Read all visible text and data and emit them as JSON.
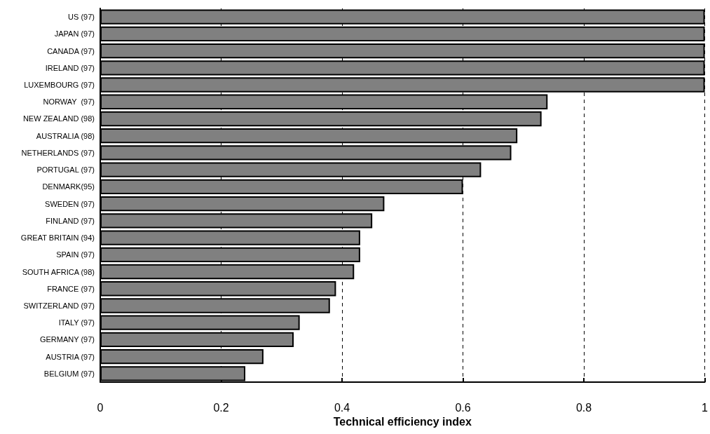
{
  "chart_data": {
    "type": "bar",
    "orientation": "horizontal",
    "xlabel": "Technical efficiency index",
    "categories": [
      "US (97)",
      "JAPAN (97)",
      "CANADA (97)",
      "IRELAND (97)",
      "LUXEMBOURG (97)",
      "NORWAY  (97)",
      "NEW ZEALAND (98)",
      "AUSTRALIA (98)",
      "NETHERLANDS (97)",
      "PORTUGAL (97)",
      "DENMARK(95)",
      "SWEDEN (97)",
      "FINLAND (97)",
      "GREAT BRITAIN (94)",
      "SPAIN (97)",
      "SOUTH AFRICA (98)",
      "FRANCE (97)",
      "SWITZERLAND (97)",
      "ITALY (97)",
      "GERMANY (97)",
      "AUSTRIA (97)",
      "BELGIUM (97)"
    ],
    "values": [
      1,
      1,
      1,
      1,
      1,
      0.74,
      0.73,
      0.69,
      0.68,
      0.63,
      0.6,
      0.47,
      0.45,
      0.43,
      0.43,
      0.42,
      0.39,
      0.38,
      0.33,
      0.32,
      0.27,
      0.24
    ],
    "color": "#808080",
    "xlim": [
      0,
      1
    ],
    "xticks": [
      0,
      0.2,
      0.4,
      0.6,
      0.8,
      1
    ],
    "grid": "x"
  }
}
